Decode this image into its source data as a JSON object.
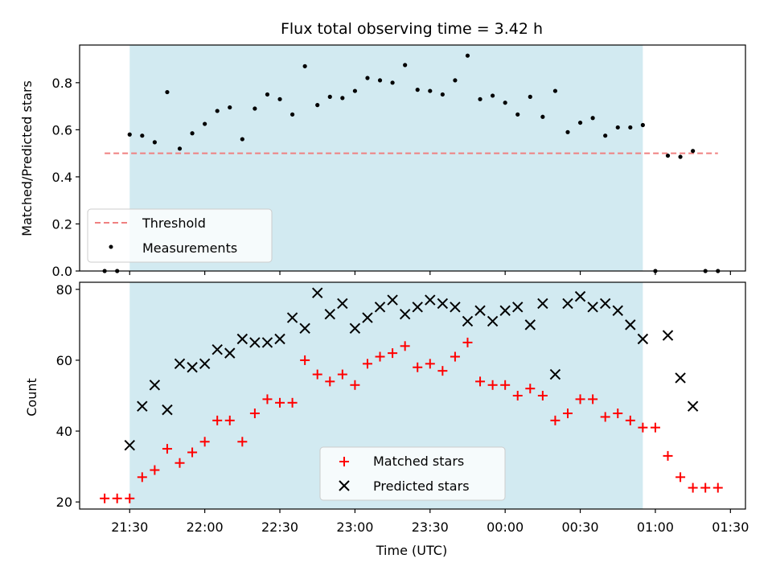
{
  "chart_data": [
    {
      "type": "scatter",
      "title": "Flux total observing time = 3.42 h",
      "xlabel": "",
      "ylabel": "Matched/Predicted stars",
      "xlim": [
        "21:10",
        "01:36"
      ],
      "ylim": [
        0,
        0.96
      ],
      "yticks": [
        "0.0",
        "0.2",
        "0.4",
        "0.6",
        "0.8"
      ],
      "grid": false,
      "legend_position": "lower-left",
      "shaded_span": {
        "start": "21:30",
        "end": "00:55",
        "color": "#add8e6"
      },
      "series": [
        {
          "name": "Threshold",
          "kind": "dashed-line",
          "color": "#f08080",
          "x": [
            "21:20",
            "01:25"
          ],
          "y": [
            0.5,
            0.5
          ]
        },
        {
          "name": "Measurements",
          "kind": "dots",
          "color": "#000000",
          "x": [
            "21:20",
            "21:25",
            "21:30",
            "21:35",
            "21:40",
            "21:45",
            "21:50",
            "21:55",
            "22:00",
            "22:05",
            "22:10",
            "22:15",
            "22:20",
            "22:25",
            "22:30",
            "22:35",
            "22:40",
            "22:45",
            "22:50",
            "22:55",
            "23:00",
            "23:05",
            "23:10",
            "23:15",
            "23:20",
            "23:25",
            "23:30",
            "23:35",
            "23:40",
            "23:45",
            "23:50",
            "23:55",
            "00:00",
            "00:05",
            "00:10",
            "00:15",
            "00:20",
            "00:25",
            "00:30",
            "00:35",
            "00:40",
            "00:45",
            "00:50",
            "00:55",
            "01:00",
            "01:05",
            "01:10",
            "01:15",
            "01:20",
            "01:25"
          ],
          "y": [
            0.0,
            0.0,
            0.58,
            0.575,
            0.547,
            0.76,
            0.52,
            0.585,
            0.625,
            0.68,
            0.695,
            0.56,
            0.69,
            0.75,
            0.73,
            0.665,
            0.87,
            0.705,
            0.74,
            0.735,
            0.765,
            0.82,
            0.81,
            0.8,
            0.875,
            0.77,
            0.765,
            0.75,
            0.81,
            0.915,
            0.73,
            0.745,
            0.715,
            0.665,
            0.74,
            0.655,
            0.765,
            0.59,
            0.63,
            0.65,
            0.575,
            0.61,
            0.61,
            0.62,
            0.0,
            0.49,
            0.485,
            0.51,
            0.0,
            0.0
          ]
        }
      ]
    },
    {
      "type": "scatter",
      "title": "",
      "xlabel": "Time (UTC)",
      "ylabel": "Count",
      "xlim": [
        "21:10",
        "01:36"
      ],
      "ylim": [
        18,
        82
      ],
      "yticks": [
        "20",
        "40",
        "60",
        "80"
      ],
      "xticks": [
        "21:30",
        "22:00",
        "22:30",
        "23:00",
        "23:30",
        "00:00",
        "00:30",
        "01:00",
        "01:30"
      ],
      "grid": false,
      "legend_position": "lower-center",
      "shaded_span": {
        "start": "21:30",
        "end": "00:55",
        "color": "#add8e6"
      },
      "series": [
        {
          "name": "Matched stars",
          "marker": "plus",
          "color": "#ff0000",
          "x": [
            "21:20",
            "21:25",
            "21:30",
            "21:35",
            "21:40",
            "21:45",
            "21:50",
            "21:55",
            "22:00",
            "22:05",
            "22:10",
            "22:15",
            "22:20",
            "22:25",
            "22:30",
            "22:35",
            "22:40",
            "22:45",
            "22:50",
            "22:55",
            "23:00",
            "23:05",
            "23:10",
            "23:15",
            "23:20",
            "23:25",
            "23:30",
            "23:35",
            "23:40",
            "23:45",
            "23:50",
            "23:55",
            "00:00",
            "00:05",
            "00:10",
            "00:15",
            "00:20",
            "00:25",
            "00:30",
            "00:35",
            "00:40",
            "00:45",
            "00:50",
            "00:55",
            "01:00",
            "01:05",
            "01:10",
            "01:15",
            "01:20",
            "01:25"
          ],
          "y": [
            21,
            21,
            21,
            27,
            29,
            35,
            31,
            34,
            37,
            43,
            43,
            37,
            45,
            49,
            48,
            48,
            60,
            56,
            54,
            56,
            53,
            59,
            61,
            62,
            64,
            58,
            59,
            57,
            61,
            65,
            54,
            53,
            53,
            50,
            52,
            50,
            43,
            45,
            49,
            49,
            44,
            45,
            43,
            41,
            41,
            33,
            27,
            24,
            24,
            24
          ]
        },
        {
          "name": "Predicted stars",
          "marker": "x",
          "color": "#000000",
          "x": [
            "21:30",
            "21:35",
            "21:40",
            "21:45",
            "21:50",
            "21:55",
            "22:00",
            "22:05",
            "22:10",
            "22:15",
            "22:20",
            "22:25",
            "22:30",
            "22:35",
            "22:40",
            "22:45",
            "22:50",
            "22:55",
            "23:00",
            "23:05",
            "23:10",
            "23:15",
            "23:20",
            "23:25",
            "23:30",
            "23:35",
            "23:40",
            "23:45",
            "23:50",
            "23:55",
            "00:00",
            "00:05",
            "00:10",
            "00:15",
            "00:20",
            "00:25",
            "00:30",
            "00:35",
            "00:40",
            "00:45",
            "00:50",
            "00:55",
            "01:05",
            "01:10",
            "01:15"
          ],
          "y": [
            36,
            47,
            53,
            46,
            59,
            58,
            59,
            63,
            62,
            66,
            65,
            65,
            66,
            72,
            69,
            79,
            73,
            76,
            69,
            72,
            75,
            77,
            73,
            75,
            77,
            76,
            75,
            71,
            74,
            71,
            74,
            75,
            70,
            76,
            56,
            76,
            78,
            75,
            76,
            74,
            70,
            66,
            67,
            55,
            47
          ]
        }
      ]
    }
  ]
}
